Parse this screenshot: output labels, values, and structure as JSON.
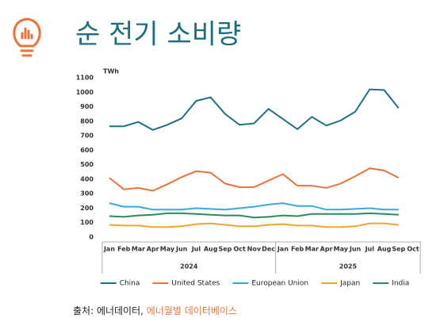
{
  "title": "순 전기 소비량",
  "source": {
    "label": "출처: 에너데이터, ",
    "link": "에너월별 데이터베이스"
  },
  "chart_data": {
    "type": "line",
    "y_unit": "TWh",
    "categories": [
      "Jan",
      "Feb",
      "Mar",
      "Apr",
      "May",
      "Jun",
      "Jul",
      "Aug",
      "Sep",
      "Oct",
      "Nov",
      "Dec",
      "Jan",
      "Feb",
      "Mar",
      "Apr",
      "May",
      "Jun",
      "Jul",
      "Aug",
      "Sep",
      "Oct"
    ],
    "x_groups": [
      "2024",
      "2025"
    ],
    "ylim": [
      0,
      1100
    ],
    "yticks": [
      0,
      100,
      200,
      300,
      400,
      500,
      600,
      700,
      800,
      900,
      1000,
      1100
    ],
    "series": [
      {
        "name": "China",
        "color": "#1f6f87",
        "values": [
          765,
          765,
          795,
          740,
          775,
          820,
          940,
          965,
          850,
          775,
          785,
          885,
          815,
          745,
          830,
          770,
          805,
          865,
          1020,
          1015,
          890,
          null
        ]
      },
      {
        "name": "United States",
        "color": "#e8743b",
        "values": [
          410,
          330,
          340,
          320,
          365,
          415,
          455,
          445,
          370,
          345,
          345,
          390,
          435,
          355,
          355,
          340,
          370,
          420,
          475,
          460,
          410,
          null
        ]
      },
      {
        "name": "European Union",
        "color": "#3aa8d8",
        "values": [
          235,
          210,
          210,
          190,
          190,
          190,
          200,
          195,
          190,
          200,
          210,
          225,
          235,
          215,
          215,
          190,
          190,
          195,
          200,
          190,
          190,
          null
        ]
      },
      {
        "name": "Japan",
        "color": "#f2a630",
        "values": [
          85,
          80,
          80,
          70,
          70,
          75,
          90,
          95,
          85,
          75,
          75,
          85,
          90,
          80,
          80,
          70,
          70,
          75,
          95,
          95,
          85,
          null
        ]
      },
      {
        "name": "India",
        "color": "#2e8b57",
        "values": [
          145,
          140,
          150,
          155,
          165,
          165,
          160,
          155,
          150,
          150,
          135,
          140,
          150,
          145,
          160,
          160,
          160,
          160,
          165,
          160,
          155,
          null
        ]
      }
    ]
  }
}
